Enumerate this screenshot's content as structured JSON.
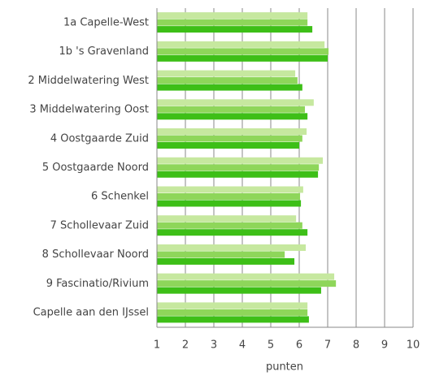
{
  "chart_data": {
    "type": "hbar",
    "categories": [
      "1a Capelle-West",
      "1b 's Gravenland",
      "2 Middelwatering West",
      "3 Middelwatering Oost",
      "4 Oostgaarde Zuid",
      "5 Oostgaarde Noord",
      "6 Schenkel",
      "7 Schollevaar Zuid",
      "8 Schollevaar Noord",
      "9 Fascinatio/Rivium",
      "Capelle aan den IJssel"
    ],
    "series": [
      {
        "color": "#c6e89f",
        "values": [
          6.29,
          6.89,
          5.86,
          6.51,
          6.26,
          6.83,
          6.14,
          5.89,
          6.23,
          7.23,
          6.29
        ]
      },
      {
        "color": "#8ed65a",
        "values": [
          6.29,
          7.03,
          5.94,
          6.2,
          6.11,
          6.69,
          6.03,
          6.11,
          5.49,
          7.29,
          6.29
        ]
      },
      {
        "color": "#3dbf17",
        "values": [
          6.46,
          7.0,
          6.11,
          6.29,
          6.0,
          6.66,
          6.06,
          6.29,
          5.83,
          6.77,
          6.34
        ]
      }
    ],
    "xlabel": "punten",
    "xlim": [
      1,
      10
    ],
    "xticks": [
      1,
      2,
      3,
      4,
      5,
      6,
      7,
      8,
      9,
      10
    ],
    "grid": true
  }
}
